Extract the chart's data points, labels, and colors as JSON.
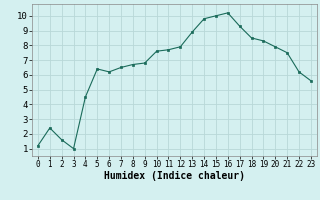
{
  "x": [
    0,
    1,
    2,
    3,
    4,
    5,
    6,
    7,
    8,
    9,
    10,
    11,
    12,
    13,
    14,
    15,
    16,
    17,
    18,
    19,
    20,
    21,
    22,
    23
  ],
  "y": [
    1.2,
    2.4,
    1.6,
    1.0,
    4.5,
    6.4,
    6.2,
    6.5,
    6.7,
    6.8,
    7.6,
    7.7,
    7.9,
    8.9,
    9.8,
    10.0,
    10.2,
    9.3,
    8.5,
    8.3,
    7.9,
    7.5,
    6.2,
    5.6
  ],
  "xlabel": "Humidex (Indice chaleur)",
  "bg_color": "#d4f0f0",
  "grid_color": "#b8d8d8",
  "line_color": "#1a6b5a",
  "marker_color": "#1a6b5a",
  "xlim": [
    -0.5,
    23.5
  ],
  "ylim": [
    0.5,
    10.8
  ],
  "yticks": [
    1,
    2,
    3,
    4,
    5,
    6,
    7,
    8,
    9,
    10
  ],
  "xticks": [
    0,
    1,
    2,
    3,
    4,
    5,
    6,
    7,
    8,
    9,
    10,
    11,
    12,
    13,
    14,
    15,
    16,
    17,
    18,
    19,
    20,
    21,
    22,
    23
  ],
  "xlabel_fontsize": 7,
  "tick_fontsize": 6.5
}
